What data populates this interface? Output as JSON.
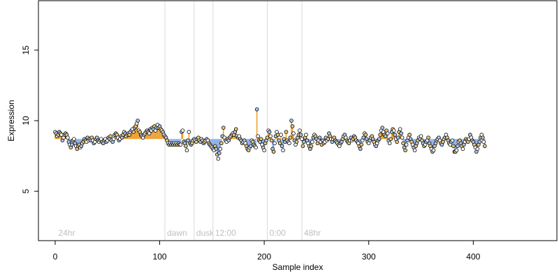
{
  "chart_data": {
    "type": "scatter",
    "title": "",
    "xlabel": "Sample index",
    "ylabel": "Expression",
    "xlim": [
      -16,
      480
    ],
    "ylim": [
      1.5,
      18.5
    ],
    "xticks": [
      0,
      100,
      200,
      300,
      400
    ],
    "yticks": [
      5,
      10,
      15
    ],
    "grid": false,
    "legend": "none",
    "baseline": 8.7,
    "region_markers": [
      {
        "x": 105,
        "label": "dawn"
      },
      {
        "x": 133,
        "label": "dusk"
      },
      {
        "x": 151,
        "label": "12:00"
      },
      {
        "x": 203,
        "label": "0:00"
      },
      {
        "x": 236,
        "label": "48hr"
      }
    ],
    "region_start_label": {
      "x": 3,
      "label": "24hr"
    },
    "colors": {
      "point_fill": "#e8c47a",
      "point_fill_alt": "#a9c4e8",
      "point_stroke": "#000000",
      "above_bar": "#f0a030",
      "below_bar": "#8fb3e8",
      "marker_line": "#d9d9d9",
      "marker_label": "#bfbfbf",
      "axis": "#000000"
    },
    "series": [
      {
        "values": [
          9.2,
          9.1,
          8.9,
          9.0,
          9.2,
          9.1,
          9.0,
          8.6,
          8.8,
          9.0,
          9.1,
          9.0,
          8.8,
          8.5,
          8.3,
          8.1,
          8.3,
          8.6,
          8.7,
          8.4,
          8.2,
          8.0,
          8.2,
          8.3,
          8.1,
          8.2,
          8.4,
          8.5,
          8.7,
          8.6,
          8.5,
          8.8,
          8.6,
          8.7,
          8.6,
          8.8,
          8.6,
          8.4,
          8.5,
          8.7,
          8.8,
          8.6,
          8.5,
          8.6,
          8.7,
          8.5,
          8.4,
          8.6,
          8.7,
          8.5,
          8.6,
          8.8,
          8.7,
          8.9,
          8.6,
          8.5,
          8.7,
          9.0,
          9.1,
          9.0,
          8.8,
          8.6,
          8.7,
          8.9,
          8.8,
          9.0,
          9.2,
          9.1,
          8.9,
          9.0,
          9.1,
          9.0,
          9.2,
          9.3,
          9.4,
          9.2,
          9.5,
          9.6,
          9.8,
          10.0,
          9.3,
          9.2,
          9.0,
          8.9,
          8.8,
          9.0,
          9.1,
          9.2,
          9.3,
          9.2,
          9.1,
          9.4,
          9.3,
          9.5,
          9.4,
          9.6,
          9.3,
          9.5,
          9.7,
          9.5,
          9.6,
          9.4,
          9.3,
          9.2,
          9.0,
          8.9,
          8.8,
          8.6,
          8.4,
          8.3,
          8.4,
          8.3,
          8.4,
          8.3,
          8.4,
          8.3,
          8.4,
          8.3,
          8.4,
          8.3,
          8.3,
          9.2,
          9.3,
          8.5,
          8.4,
          8.2,
          7.9,
          8.6,
          9.2,
          8.4,
          8.3,
          8.4,
          8.6,
          8.7,
          8.6,
          8.5,
          8.7,
          8.8,
          8.6,
          8.5,
          8.7,
          8.6,
          8.4,
          8.5,
          8.6,
          8.7,
          8.6,
          8.4,
          8.3,
          8.2,
          8.1,
          8.0,
          7.9,
          8.2,
          8.0,
          7.6,
          7.3,
          7.7,
          8.0,
          8.4,
          8.9,
          9.5,
          8.8,
          8.6,
          8.5,
          8.7,
          8.6,
          8.8,
          8.9,
          9.0,
          9.1,
          9.0,
          9.2,
          9.4,
          8.9,
          8.8,
          8.9,
          8.7,
          8.6,
          8.4,
          8.5,
          8.6,
          8.4,
          8.2,
          8.0,
          7.9,
          8.1,
          8.2,
          8.6,
          8.5,
          8.3,
          8.2,
          8.1,
          10.8,
          8.9,
          8.6,
          8.5,
          8.7,
          8.3,
          8.1,
          7.9,
          8.4,
          8.6,
          8.8,
          9.3,
          9.2,
          8.9,
          8.6,
          8.0,
          7.8,
          8.4,
          8.9,
          9.2,
          9.0,
          8.6,
          8.4,
          9.0,
          8.2,
          7.9,
          8.7,
          8.5,
          9.2,
          8.6,
          8.5,
          8.4,
          8.8,
          10.0,
          9.6,
          9.1,
          8.6,
          8.3,
          8.5,
          8.8,
          9.0,
          9.3,
          9.0,
          8.7,
          8.2,
          8.5,
          8.8,
          9.0,
          8.6,
          8.4,
          8.2,
          8.0,
          8.2,
          8.5,
          8.8,
          9.0,
          8.9,
          8.7,
          8.4,
          8.6,
          8.8,
          8.5,
          8.3,
          8.6,
          8.4,
          8.5,
          8.8,
          8.6,
          8.7,
          9.1,
          8.9,
          8.7,
          8.5,
          8.7,
          8.8,
          8.6,
          8.5,
          8.4,
          8.3,
          8.2,
          8.4,
          8.5,
          8.7,
          8.9,
          9.0,
          8.8,
          8.6,
          8.5,
          8.4,
          8.6,
          8.8,
          8.6,
          8.7,
          8.9,
          8.8,
          8.6,
          8.5,
          8.4,
          8.2,
          8.0,
          8.3,
          8.6,
          8.8,
          9.1,
          9.0,
          8.7,
          8.5,
          8.4,
          8.6,
          8.8,
          8.9,
          8.7,
          8.5,
          8.3,
          8.2,
          8.4,
          8.6,
          8.7,
          9.0,
          9.3,
          9.5,
          9.2,
          9.0,
          8.9,
          9.3,
          9.1,
          8.6,
          8.4,
          8.7,
          9.2,
          9.4,
          9.3,
          9.0,
          8.7,
          8.5,
          8.8,
          9.2,
          9.4,
          9.1,
          8.8,
          8.4,
          8.1,
          7.9,
          8.3,
          8.6,
          8.8,
          9.0,
          8.7,
          8.5,
          8.3,
          8.1,
          7.9,
          8.2,
          8.4,
          8.6,
          8.8,
          8.7,
          8.9,
          8.6,
          8.4,
          8.2,
          8.3,
          8.5,
          8.6,
          8.8,
          8.4,
          8.2,
          8.0,
          7.8,
          7.9,
          8.2,
          8.4,
          8.6,
          8.7,
          8.8,
          8.6,
          8.4,
          8.3,
          8.5,
          8.7,
          8.8,
          9.0,
          8.8,
          8.6,
          8.4,
          8.3,
          8.5,
          8.6,
          8.2,
          7.8,
          7.8,
          7.9,
          8.2,
          8.5,
          8.6,
          8.4,
          8.2,
          8.0,
          8.3,
          8.5,
          8.7,
          8.6,
          8.5,
          8.7,
          9.0,
          8.8,
          8.6,
          8.5,
          8.3,
          8.1,
          7.8,
          8.0,
          8.3,
          8.5,
          8.8,
          9.0,
          8.8,
          8.5,
          8.2
        ]
      }
    ]
  }
}
